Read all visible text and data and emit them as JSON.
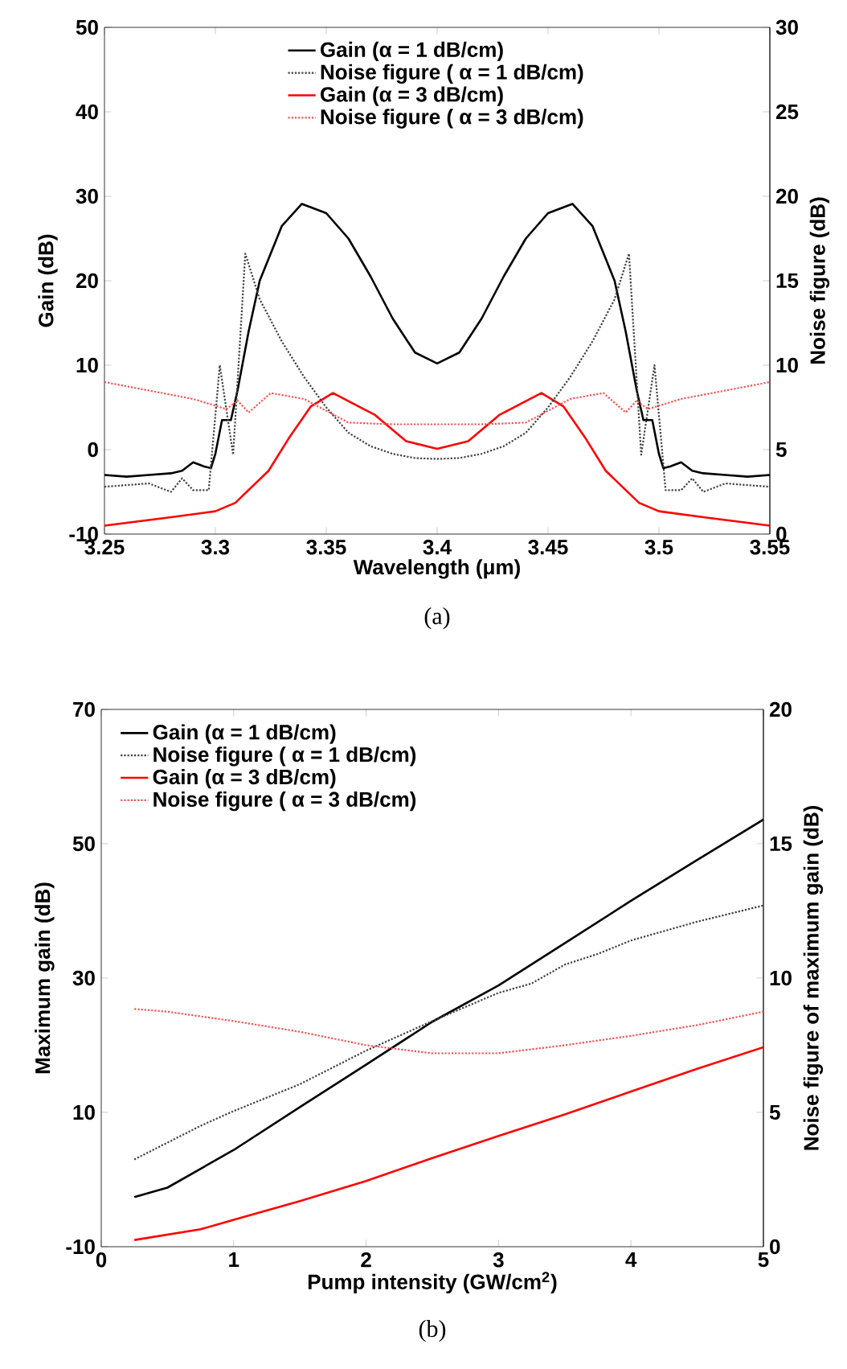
{
  "chart_data": [
    {
      "type": "line",
      "xlabel": "Wavelength (μm)",
      "ylabel": "Gain (dB)",
      "y2label": "Noise figure (dB)",
      "annotations": [
        "(a)"
      ],
      "xlim": [
        3.25,
        3.55
      ],
      "xticks": [
        {
          "value": 3.25,
          "label": "3.25"
        },
        {
          "value": 3.3,
          "label": "3.3"
        },
        {
          "value": 3.35,
          "label": "3.35"
        },
        {
          "value": 3.4,
          "label": "3.4"
        },
        {
          "value": 3.45,
          "label": "3.45"
        },
        {
          "value": 3.5,
          "label": "3.5"
        },
        {
          "value": 3.55,
          "label": "3.55"
        }
      ],
      "ylim": [
        -10,
        50
      ],
      "yticks": [
        -10,
        0,
        10,
        20,
        30,
        40,
        50
      ],
      "y2lim": [
        0,
        30
      ],
      "y2ticks": [
        0,
        5,
        10,
        15,
        20,
        25,
        30
      ],
      "legend": "top",
      "series": [
        {
          "name": "Gain (α = 1 dB/cm)",
          "color": "#000000",
          "line_style": "solid",
          "x": [
            3.25,
            3.26,
            3.27,
            3.28,
            3.285,
            3.29,
            3.295,
            3.298,
            3.3,
            3.303,
            3.307,
            3.31,
            3.315,
            3.32,
            3.33,
            3.339,
            3.35,
            3.36,
            3.37,
            3.38,
            3.39,
            3.4,
            3.41,
            3.42,
            3.43,
            3.44,
            3.45,
            3.461,
            3.47,
            3.48,
            3.485,
            3.49,
            3.493,
            3.497,
            3.5,
            3.502,
            3.505,
            3.51,
            3.515,
            3.52,
            3.53,
            3.54,
            3.55
          ],
          "values": [
            -3,
            -3.2,
            -3,
            -2.8,
            -2.5,
            -1.5,
            -2,
            -2.2,
            -0.5,
            3.5,
            3.5,
            7,
            14,
            20,
            26.5,
            29.1,
            28,
            25,
            20.5,
            15.5,
            11.5,
            10.2,
            11.5,
            15.5,
            20.5,
            25,
            28,
            29.1,
            26.5,
            20,
            14,
            7,
            3.5,
            3.5,
            -0.5,
            -2.2,
            -2,
            -1.5,
            -2.5,
            -2.8,
            -3,
            -3.2,
            -3
          ]
        },
        {
          "name": "Noise figure ( α = 1 dB/cm)",
          "color": "#404040",
          "line_style": "dotted",
          "axis": "y2",
          "x": [
            3.25,
            3.26,
            3.27,
            3.28,
            3.285,
            3.29,
            3.297,
            3.302,
            3.308,
            3.3135,
            3.32,
            3.33,
            3.34,
            3.35,
            3.36,
            3.37,
            3.38,
            3.39,
            3.4,
            3.41,
            3.42,
            3.43,
            3.44,
            3.45,
            3.46,
            3.47,
            3.48,
            3.4865,
            3.492,
            3.498,
            3.503,
            3.51,
            3.515,
            3.52,
            3.53,
            3.54,
            3.55
          ],
          "values": [
            2.8,
            2.9,
            3.0,
            2.5,
            3.3,
            2.6,
            2.6,
            10.0,
            4.7,
            16.6,
            13.9,
            11.4,
            9.3,
            7.5,
            6.0,
            5.2,
            4.75,
            4.5,
            4.45,
            4.5,
            4.75,
            5.2,
            6.0,
            7.5,
            9.3,
            11.4,
            13.9,
            16.6,
            4.7,
            10.0,
            2.6,
            2.6,
            3.3,
            2.5,
            3.0,
            2.9,
            2.8
          ]
        },
        {
          "name": "Gain (α = 3 dB/cm)",
          "color": "#ff0000",
          "line_style": "solid",
          "x": [
            3.25,
            3.28,
            3.3,
            3.309,
            3.324,
            3.333,
            3.343,
            3.353,
            3.372,
            3.386,
            3.4,
            3.414,
            3.428,
            3.447,
            3.457,
            3.467,
            3.476,
            3.491,
            3.5,
            3.52,
            3.55
          ],
          "values": [
            -9,
            -8,
            -7.3,
            -6.3,
            -2.5,
            1.3,
            5.1,
            6.7,
            4.1,
            1.0,
            0.1,
            1.0,
            4.1,
            6.7,
            5.1,
            1.3,
            -2.5,
            -6.3,
            -7.3,
            -8,
            -9
          ]
        },
        {
          "name": "Noise figure ( α = 3 dB/cm)",
          "color": "#ff5050",
          "line_style": "dotted",
          "axis": "y2",
          "x": [
            3.25,
            3.27,
            3.29,
            3.305,
            3.31,
            3.315,
            3.325,
            3.34,
            3.36,
            3.38,
            3.4,
            3.42,
            3.44,
            3.46,
            3.475,
            3.485,
            3.49,
            3.495,
            3.51,
            3.53,
            3.55
          ],
          "values": [
            9,
            8.5,
            8,
            7.4,
            7.9,
            7.2,
            8.35,
            8,
            6.6,
            6.5,
            6.5,
            6.5,
            6.6,
            8,
            8.35,
            7.2,
            7.9,
            7.4,
            8,
            8.5,
            9
          ]
        }
      ]
    },
    {
      "type": "line",
      "xlabel": "Pump intensity (GW/cm$^{2}$)",
      "ylabel": "Maximum gain (dB)",
      "y2label": "Noise figure of maximum gain (dB)",
      "annotations": [
        "(b)"
      ],
      "xlim": [
        0,
        5
      ],
      "xticks": [
        0,
        1,
        2,
        3,
        4,
        5
      ],
      "ylim": [
        -10,
        70
      ],
      "yticks": [
        -10,
        10,
        30,
        50,
        70
      ],
      "y2lim": [
        0,
        20
      ],
      "y2ticks": [
        0,
        5,
        10,
        15,
        20
      ],
      "legend": "top left",
      "series": [
        {
          "name": "Gain (α = 1 dB/cm)",
          "color": "#000000",
          "line_style": "solid",
          "x": [
            0.25,
            0.5,
            1,
            1.5,
            2,
            2.5,
            3,
            3.5,
            4,
            4.5,
            5
          ],
          "values": [
            -2.6,
            -1.2,
            4.4,
            10.8,
            17.1,
            23.5,
            28.9,
            35.2,
            41.5,
            47.6,
            53.6
          ]
        },
        {
          "name": "Noise figure ( α = 1 dB/cm)",
          "color": "#404040",
          "line_style": "dotted",
          "axis": "y2",
          "x": [
            0.25,
            0.75,
            1,
            1.5,
            2,
            2.5,
            3,
            3.25,
            3.5,
            3.75,
            4,
            4.5,
            5
          ],
          "values": [
            3.25,
            4.5,
            5.05,
            6.05,
            7.3,
            8.4,
            9.45,
            9.8,
            10.5,
            10.9,
            11.4,
            12.1,
            12.7
          ]
        },
        {
          "name": "Gain (α = 3 dB/cm)",
          "color": "#ff0000",
          "line_style": "solid",
          "x": [
            0.25,
            0.75,
            1,
            1.5,
            2,
            2.5,
            3,
            3.5,
            4,
            4.5,
            5
          ],
          "values": [
            -9.0,
            -7.4,
            -6.0,
            -3.2,
            -0.2,
            3.2,
            6.5,
            9.7,
            13.1,
            16.5,
            19.7
          ]
        },
        {
          "name": "Noise figure ( α = 3 dB/cm)",
          "color": "#ff5050",
          "line_style": "dotted",
          "axis": "y2",
          "x": [
            0.25,
            0.5,
            1,
            1.5,
            2,
            2.5,
            3,
            3.5,
            4,
            4.5,
            5
          ],
          "values": [
            8.85,
            8.75,
            8.4,
            8.0,
            7.5,
            7.2,
            7.2,
            7.5,
            7.85,
            8.25,
            8.75
          ]
        }
      ]
    }
  ]
}
